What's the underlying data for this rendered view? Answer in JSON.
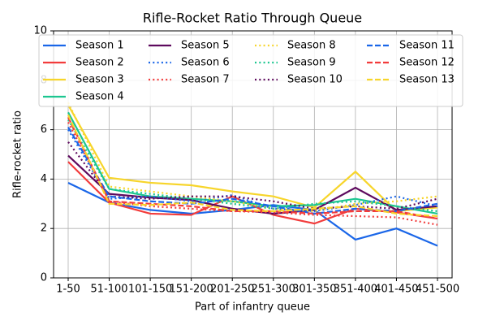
{
  "chart_data": {
    "type": "line",
    "title": "Rifle-Rocket Ratio Through Queue",
    "xlabel": "Part of infantry queue",
    "ylabel": "Rifle-rocket ratio",
    "categories": [
      "1-50",
      "51-100",
      "101-150",
      "151-200",
      "201-250",
      "251-300",
      "301-350",
      "351-400",
      "401-450",
      "451-500"
    ],
    "ylim": [
      0,
      10
    ],
    "yticks": [
      0,
      2,
      4,
      6,
      8,
      10
    ],
    "grid": true,
    "legend": "upper center",
    "series": [
      {
        "name": "Season 1",
        "color": "#1a66e8",
        "linestyle": "solid",
        "values": [
          3.85,
          3.05,
          2.75,
          2.6,
          2.75,
          2.95,
          2.75,
          1.55,
          2.0,
          1.3
        ]
      },
      {
        "name": "Season 2",
        "color": "#f23c3c",
        "linestyle": "solid",
        "values": [
          4.7,
          3.05,
          2.6,
          2.55,
          3.3,
          2.55,
          2.2,
          2.8,
          2.65,
          2.4
        ]
      },
      {
        "name": "Season 3",
        "color": "#f7d52b",
        "linestyle": "solid",
        "values": [
          7.0,
          4.05,
          3.85,
          3.75,
          3.5,
          3.3,
          2.85,
          4.3,
          2.7,
          2.85
        ]
      },
      {
        "name": "Season 4",
        "color": "#1cc690",
        "linestyle": "solid",
        "values": [
          6.7,
          3.6,
          3.3,
          3.2,
          3.1,
          2.9,
          2.95,
          3.2,
          2.9,
          2.6
        ]
      },
      {
        "name": "Season 5",
        "color": "#5e0a5e",
        "linestyle": "solid",
        "values": [
          4.95,
          3.4,
          3.25,
          3.15,
          2.8,
          2.6,
          2.75,
          3.65,
          2.75,
          2.9
        ]
      },
      {
        "name": "Season 6",
        "color": "#1a66e8",
        "linestyle": "dotted",
        "values": [
          6.0,
          3.2,
          3.3,
          3.1,
          3.35,
          2.8,
          2.7,
          2.95,
          3.3,
          2.9
        ]
      },
      {
        "name": "Season 7",
        "color": "#f23c3c",
        "linestyle": "dotted",
        "values": [
          6.3,
          3.1,
          2.9,
          2.8,
          2.7,
          2.65,
          2.55,
          2.5,
          2.45,
          2.15
        ]
      },
      {
        "name": "Season 8",
        "color": "#f7d52b",
        "linestyle": "dotted",
        "values": [
          7.1,
          3.7,
          3.5,
          3.3,
          3.1,
          2.8,
          2.7,
          3.0,
          3.1,
          3.3
        ]
      },
      {
        "name": "Season 9",
        "color": "#1cc690",
        "linestyle": "dotted",
        "values": [
          6.4,
          3.6,
          3.4,
          3.2,
          3.0,
          2.8,
          3.0,
          3.1,
          2.9,
          2.7
        ]
      },
      {
        "name": "Season 10",
        "color": "#5e0a5e",
        "linestyle": "dotted",
        "values": [
          5.5,
          3.3,
          3.2,
          3.3,
          3.3,
          3.1,
          2.8,
          2.9,
          2.8,
          3.2
        ]
      },
      {
        "name": "Season 11",
        "color": "#1a66e8",
        "linestyle": "dashed",
        "values": [
          6.1,
          3.3,
          3.1,
          3.0,
          3.2,
          2.9,
          2.6,
          2.8,
          2.7,
          3.0
        ]
      },
      {
        "name": "Season 12",
        "color": "#f23c3c",
        "linestyle": "dashed",
        "values": [
          6.5,
          3.1,
          3.0,
          2.9,
          2.7,
          2.7,
          2.6,
          2.7,
          2.7,
          2.4
        ]
      },
      {
        "name": "Season 13",
        "color": "#f7d52b",
        "linestyle": "dashed",
        "values": [
          6.6,
          3.0,
          2.95,
          3.05,
          2.75,
          2.7,
          2.8,
          2.9,
          2.6,
          2.5
        ]
      }
    ]
  }
}
